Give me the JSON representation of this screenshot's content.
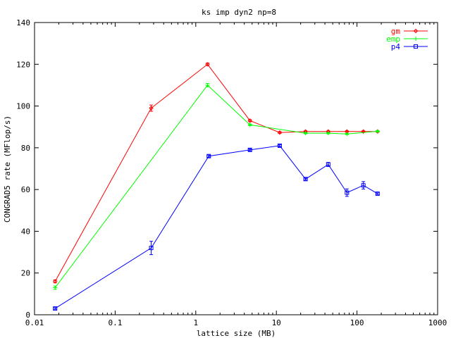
{
  "chart_data": {
    "type": "line",
    "title": "ks imp dyn2 np=8",
    "xlabel": "lattice size (MB)",
    "ylabel": "CONGRAD5 rate (MFlop/s)",
    "x_scale": "log",
    "xlim": [
      0.01,
      1000
    ],
    "ylim": [
      0,
      140
    ],
    "x_ticks": [
      0.01,
      0.1,
      1,
      10,
      100,
      1000
    ],
    "x_tick_labels": [
      "0.01",
      "0.1",
      "1",
      "10",
      "100",
      "1000"
    ],
    "y_ticks": [
      0,
      20,
      40,
      60,
      80,
      100,
      120,
      140
    ],
    "y_tick_labels": [
      "0",
      "20",
      "40",
      "60",
      "80",
      "100",
      "120",
      "140"
    ],
    "grid": false,
    "legend_position": "top-right",
    "series": [
      {
        "name": "gm",
        "color": "#ff0000",
        "marker": "diamond",
        "points": [
          {
            "x": 0.018,
            "y": 16,
            "err": 0.7
          },
          {
            "x": 0.28,
            "y": 99,
            "err": 1.5
          },
          {
            "x": 1.4,
            "y": 120,
            "err": 0.6
          },
          {
            "x": 4.7,
            "y": 93,
            "err": 0.5
          },
          {
            "x": 11,
            "y": 87.3,
            "err": 0.4
          },
          {
            "x": 23,
            "y": 87.8,
            "err": 0.3
          },
          {
            "x": 44,
            "y": 87.8,
            "err": 0.3
          },
          {
            "x": 75,
            "y": 87.8,
            "err": 0.3
          },
          {
            "x": 120,
            "y": 87.8,
            "err": 0.3
          },
          {
            "x": 180,
            "y": 87.8,
            "err": 0.3
          }
        ]
      },
      {
        "name": "emp",
        "color": "#00ff00",
        "marker": "plus",
        "points": [
          {
            "x": 0.018,
            "y": 13,
            "err": 0.8
          },
          {
            "x": 1.4,
            "y": 110,
            "err": 0.8
          },
          {
            "x": 4.7,
            "y": 91,
            "err": 0.4
          },
          {
            "x": 23,
            "y": 87,
            "err": 0.3
          },
          {
            "x": 44,
            "y": 87,
            "err": 0.3
          },
          {
            "x": 75,
            "y": 86.6,
            "err": 0.3
          },
          {
            "x": 180,
            "y": 87.9,
            "err": 0.3
          }
        ]
      },
      {
        "name": "p4",
        "color": "#0000ff",
        "marker": "square",
        "points": [
          {
            "x": 0.018,
            "y": 3,
            "err": 0.4
          },
          {
            "x": 0.28,
            "y": 32,
            "err": 3.2
          },
          {
            "x": 1.45,
            "y": 76,
            "err": 0.5
          },
          {
            "x": 4.7,
            "y": 79,
            "err": 0.5
          },
          {
            "x": 11,
            "y": 81,
            "err": 0.5
          },
          {
            "x": 23,
            "y": 65,
            "err": 0.5
          },
          {
            "x": 44,
            "y": 72,
            "err": 1.0
          },
          {
            "x": 75,
            "y": 58.5,
            "err": 1.8
          },
          {
            "x": 120,
            "y": 62,
            "err": 1.8
          },
          {
            "x": 180,
            "y": 58,
            "err": 0.4
          }
        ]
      }
    ]
  }
}
